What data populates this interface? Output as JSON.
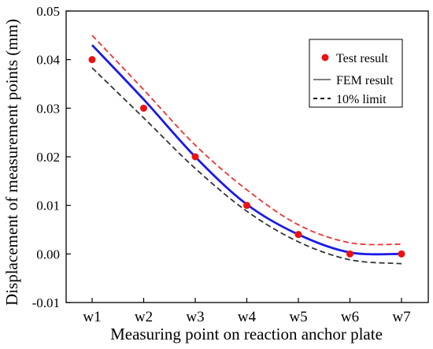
{
  "chart_data": {
    "type": "line",
    "xlabel": "Measuring point on reaction anchor plate",
    "ylabel": "Displacement of measurement points (mm)",
    "categories": [
      "w1",
      "w2",
      "w3",
      "w4",
      "w5",
      "w6",
      "w7"
    ],
    "ylim": [
      -0.01,
      0.05
    ],
    "yticks": [
      "-0.01",
      "0.00",
      "0.01",
      "0.02",
      "0.03",
      "0.04",
      "0.05"
    ],
    "grid": false,
    "legend_position": "top-right",
    "series": [
      {
        "name": "Test result",
        "style": "markers",
        "color": "#ee1111",
        "values": [
          0.04,
          0.03,
          0.02,
          0.01,
          0.004,
          0.0,
          0.0
        ]
      },
      {
        "name": "FEM result",
        "style": "solid",
        "color": "#1a1ae6",
        "values": [
          0.043,
          0.0318,
          0.02,
          0.0102,
          0.004,
          0.0003,
          0.0
        ]
      },
      {
        "name": "10% limit",
        "style": "dashed",
        "color": "#333333",
        "values": [
          0.0383,
          0.028,
          0.0176,
          0.0088,
          0.0025,
          -0.0012,
          -0.002
        ]
      }
    ],
    "extra_lines": [
      {
        "style": "dashed",
        "color": "#ee3333",
        "values": [
          0.045,
          0.0338,
          0.0224,
          0.0132,
          0.006,
          0.0023,
          0.002
        ]
      }
    ]
  }
}
